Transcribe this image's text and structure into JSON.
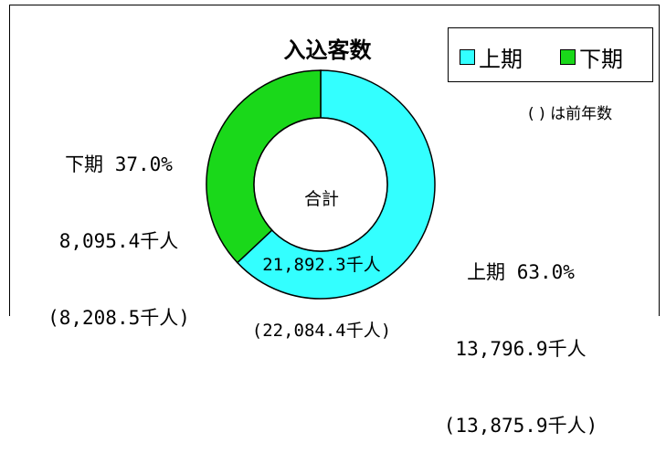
{
  "chart_data": {
    "type": "pie",
    "donut": true,
    "title": "入込客数",
    "legend_position": "top-right",
    "slices": [
      {
        "name": "上期",
        "percent": 63.0,
        "value": 13796.9,
        "prev_value": 13875.9,
        "color": "#33ffff",
        "label_lines": [
          "上期 63.0%",
          "13,796.9千人",
          "(13,875.9千人)"
        ]
      },
      {
        "name": "下期",
        "percent": 37.0,
        "value": 8095.4,
        "prev_value": 8208.5,
        "color": "#1ad81a",
        "label_lines": [
          "下期 37.0%",
          "8,095.4千人",
          "(8,208.5千人)"
        ]
      }
    ],
    "center_label_lines": [
      "合計",
      "21,892.3千人",
      "(22,084.4千人)"
    ],
    "note": "( ) は前年数"
  }
}
